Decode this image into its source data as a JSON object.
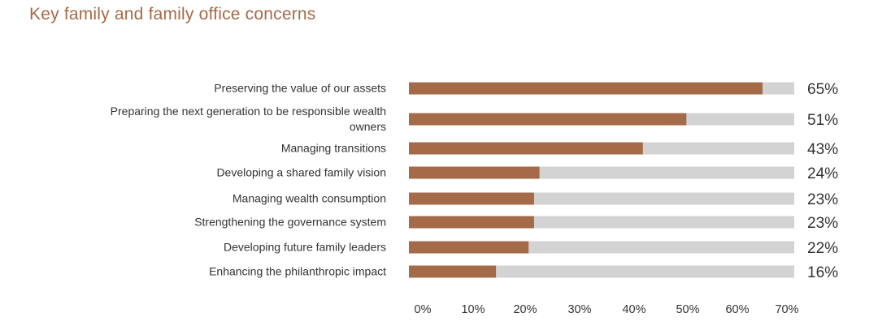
{
  "title": "Key family and family office concerns",
  "chart_data": {
    "type": "bar",
    "orientation": "horizontal",
    "title": "Key family and family office concerns",
    "categories": [
      [
        "Preserving the value of our assets"
      ],
      [
        "Preparing the next generation to be responsible wealth",
        "owners"
      ],
      [
        "Managing transitions"
      ],
      [
        "Developing a shared family vision"
      ],
      [
        "Managing wealth consumption"
      ],
      [
        "Strengthening the governance system"
      ],
      [
        "Developing future family leaders"
      ],
      [
        "Enhancing the philanthropic impact"
      ]
    ],
    "values": [
      65,
      51,
      43,
      24,
      23,
      23,
      22,
      16
    ],
    "value_labels": [
      "65%",
      "51%",
      "43%",
      "24%",
      "23%",
      "23%",
      "22%",
      "16%"
    ],
    "xlim": [
      0,
      70
    ],
    "xticks": [
      "0%",
      "10%",
      "20%",
      "30%",
      "40%",
      "50%",
      "60%",
      "70%"
    ],
    "bar_color": "#a56a47",
    "track_color": "#d3d3d3",
    "grid": false,
    "legend": "none"
  }
}
